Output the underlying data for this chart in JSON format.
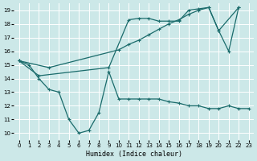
{
  "xlabel": "Humidex (Indice chaleur)",
  "bg_color": "#cce8e8",
  "grid_color": "#ffffff",
  "line_color": "#1a6b6b",
  "xlim": [
    -0.5,
    23.5
  ],
  "ylim": [
    9.5,
    19.5
  ],
  "xticks": [
    0,
    1,
    2,
    3,
    4,
    5,
    6,
    7,
    8,
    9,
    10,
    11,
    12,
    13,
    14,
    15,
    16,
    17,
    18,
    19,
    20,
    21,
    22,
    23
  ],
  "yticks": [
    10,
    11,
    12,
    13,
    14,
    15,
    16,
    17,
    18,
    19
  ],
  "line1_x": [
    0,
    1,
    2,
    3,
    4,
    5,
    6,
    7,
    8,
    9,
    10,
    11,
    12,
    13,
    14,
    15,
    16,
    17,
    18,
    19,
    20,
    21,
    22,
    23
  ],
  "line1_y": [
    15.3,
    15.0,
    14.0,
    13.2,
    13.0,
    11.0,
    10.0,
    10.2,
    11.5,
    14.5,
    12.5,
    12.5,
    12.5,
    12.5,
    12.5,
    12.3,
    12.2,
    12.0,
    12.0,
    11.8,
    11.8,
    12.0,
    11.8,
    11.8
  ],
  "line2_x": [
    0,
    2,
    9,
    11,
    12,
    13,
    14,
    15,
    16,
    17,
    18,
    19,
    20,
    21,
    22
  ],
  "line2_y": [
    15.3,
    14.2,
    14.8,
    18.3,
    18.4,
    18.4,
    18.2,
    18.2,
    18.2,
    19.0,
    19.1,
    19.2,
    17.5,
    16.0,
    19.2
  ],
  "line3_x": [
    0,
    3,
    10,
    11,
    12,
    13,
    14,
    15,
    16,
    17,
    18,
    19,
    20,
    22
  ],
  "line3_y": [
    15.3,
    14.8,
    16.1,
    16.5,
    16.8,
    17.2,
    17.6,
    18.0,
    18.3,
    18.7,
    19.0,
    19.2,
    17.5,
    19.2
  ]
}
